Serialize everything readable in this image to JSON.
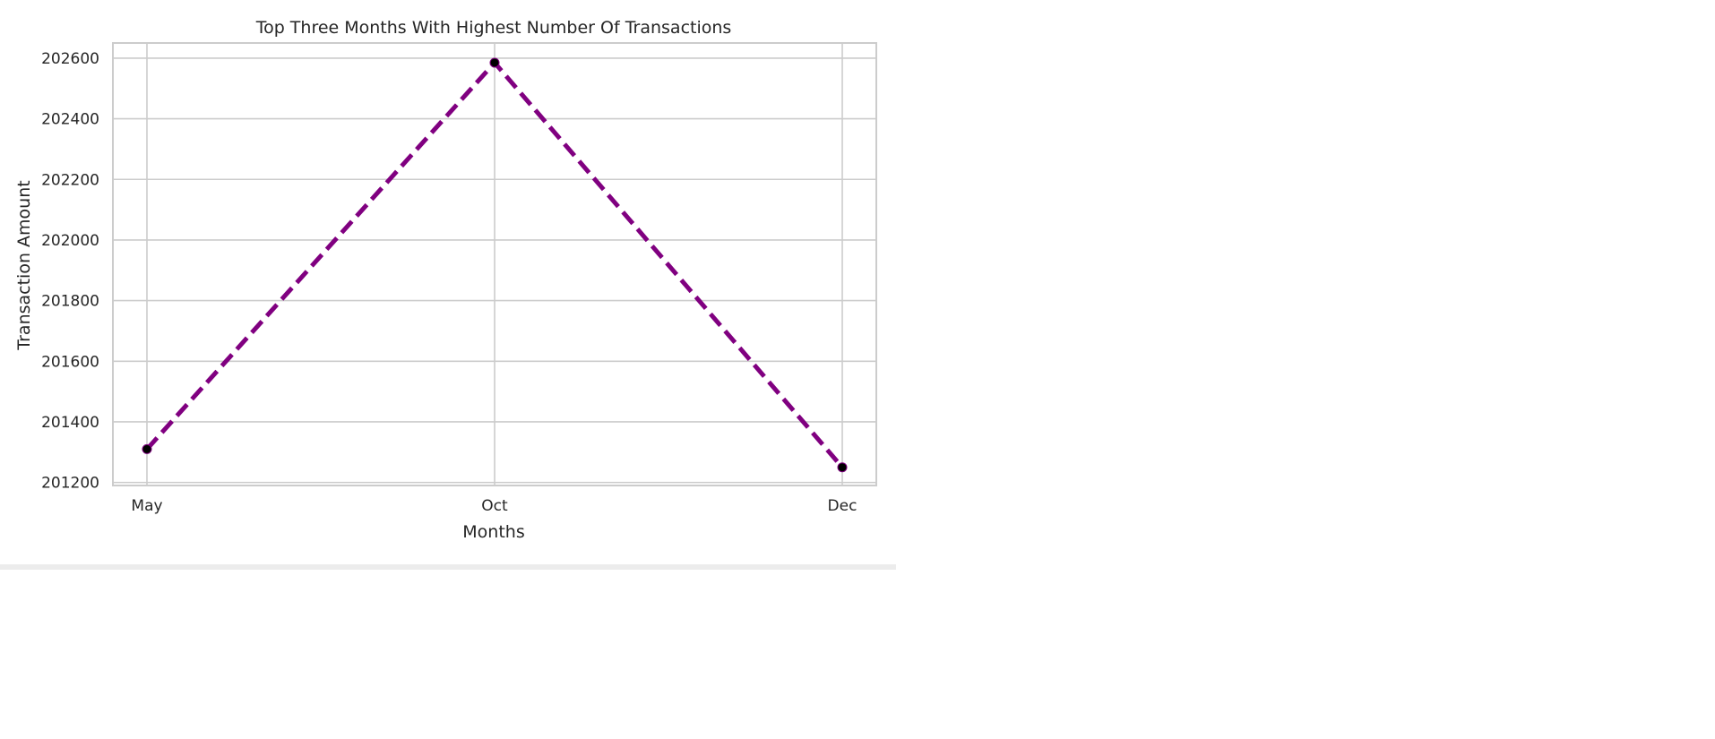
{
  "chart_data": {
    "type": "line",
    "title": "Top Three Months With Highest Number Of Transactions",
    "xlabel": "Months",
    "ylabel": "Transaction Amount",
    "categories": [
      "May",
      "Oct",
      "Dec"
    ],
    "series": [
      {
        "values": [
          201310,
          202585,
          201250
        ]
      }
    ],
    "ylim": [
      201190,
      202650
    ],
    "yticks": [
      201200,
      201400,
      201600,
      201800,
      202000,
      202200,
      202400,
      202600
    ],
    "ytick_labels": [
      "201200",
      "201400",
      "201600",
      "201800",
      "202000",
      "202200",
      "202400",
      "202600"
    ],
    "grid": true,
    "line_style": "dashed",
    "line_color": "#800080",
    "marker_color": "#000000",
    "legend": "none"
  }
}
